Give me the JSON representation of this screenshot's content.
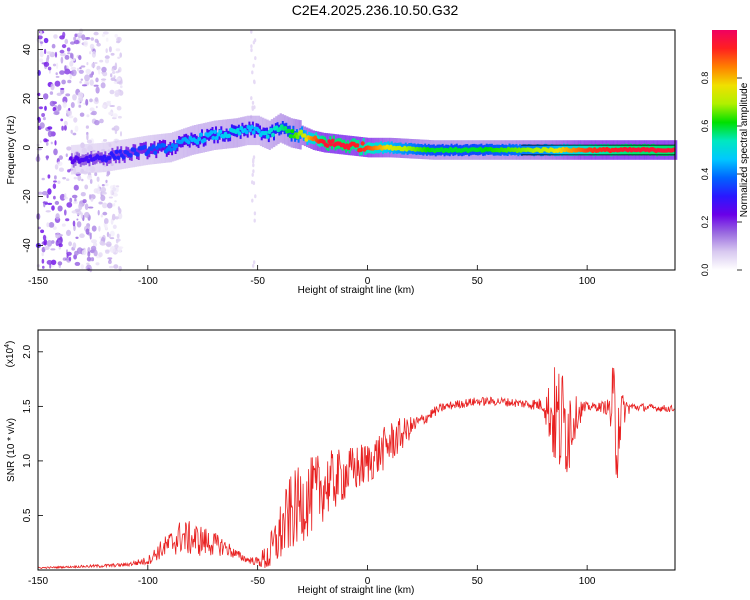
{
  "title": "C2E4.2025.236.10.50.G32",
  "chart_data": [
    {
      "type": "heatmap",
      "name": "spectrogram",
      "xlabel": "Height of straight line (km)",
      "ylabel": "Frequency (Hz)",
      "xlim": [
        -150,
        140
      ],
      "ylim": [
        -50,
        48
      ],
      "xticks": [
        -150,
        -100,
        -50,
        0,
        50,
        100
      ],
      "yticks": [
        -40,
        -20,
        0,
        20,
        40
      ],
      "colorbar": {
        "label": "Normalized spectral amplitude",
        "range": [
          0,
          1
        ],
        "ticks": [
          "0.0",
          "0.2",
          "0.4",
          "0.6",
          "0.8"
        ],
        "colors": [
          "#ffffff",
          "#d8c8f0",
          "#9a6be0",
          "#6a00e8",
          "#2a18ff",
          "#0064ff",
          "#00c8ff",
          "#00e8c0",
          "#00e000",
          "#b0f000",
          "#f0e000",
          "#ff8000",
          "#ff2020",
          "#f00060"
        ]
      },
      "ridge": {
        "x": [
          -135,
          -120,
          -100,
          -90,
          -80,
          -70,
          -60,
          -55,
          -50,
          -45,
          -40,
          -35,
          -30,
          -25,
          -20,
          -10,
          0,
          10,
          30,
          50,
          80,
          100,
          120,
          140
        ],
        "frequency": [
          -5,
          -4,
          -1,
          0,
          3,
          5,
          6,
          7,
          7,
          5,
          8,
          6,
          5,
          3,
          2,
          1,
          0,
          0,
          -1,
          -1,
          -1,
          -1,
          -1,
          -1
        ],
        "amplitude": [
          0.25,
          0.3,
          0.35,
          0.4,
          0.45,
          0.45,
          0.5,
          0.45,
          0.45,
          0.5,
          0.55,
          0.6,
          0.7,
          0.85,
          0.95,
          0.95,
          0.9,
          0.75,
          0.6,
          0.6,
          0.7,
          0.9,
          0.95,
          0.95
        ]
      },
      "scatter_region_x": [
        -150,
        -112
      ]
    },
    {
      "type": "line",
      "name": "snr",
      "xlabel": "Height of straight line (km)",
      "ylabel": "SNR (10 * v/v)",
      "yscale_label": "(x10",
      "yscale_exp": "4",
      "xlim": [
        -150,
        140
      ],
      "ylim": [
        0,
        2.2
      ],
      "xticks": [
        -150,
        -100,
        -50,
        0,
        50,
        100
      ],
      "yticks": [
        "0.5",
        "1.0",
        "1.5",
        "2.0"
      ],
      "series": [
        {
          "name": "SNR",
          "color": "#e82020",
          "x": [
            -150,
            -135,
            -120,
            -110,
            -100,
            -95,
            -90,
            -85,
            -80,
            -75,
            -70,
            -65,
            -60,
            -55,
            -50,
            -45,
            -40,
            -35,
            -30,
            -25,
            -20,
            -15,
            -10,
            -5,
            0,
            5,
            10,
            15,
            20,
            25,
            30,
            35,
            40,
            50,
            60,
            70,
            80,
            85,
            88,
            90,
            92,
            95,
            100,
            105,
            110,
            112,
            113,
            114,
            116,
            120,
            130,
            140
          ],
          "envelope": [
            0.02,
            0.03,
            0.04,
            0.05,
            0.09,
            0.18,
            0.25,
            0.32,
            0.3,
            0.28,
            0.25,
            0.22,
            0.15,
            0.1,
            0.08,
            0.14,
            0.35,
            0.55,
            0.65,
            0.72,
            0.8,
            0.85,
            0.9,
            0.95,
            1.0,
            1.08,
            1.18,
            1.25,
            1.32,
            1.38,
            1.45,
            1.5,
            1.52,
            1.55,
            1.55,
            1.53,
            1.52,
            1.45,
            1.4,
            1.38,
            1.4,
            1.45,
            1.5,
            1.5,
            1.5,
            1.45,
            1.4,
            1.45,
            1.48,
            1.5,
            1.49,
            1.48
          ],
          "spread": [
            0.01,
            0.01,
            0.02,
            0.02,
            0.05,
            0.1,
            0.15,
            0.2,
            0.2,
            0.18,
            0.14,
            0.1,
            0.06,
            0.04,
            0.05,
            0.2,
            0.35,
            0.45,
            0.45,
            0.45,
            0.4,
            0.35,
            0.3,
            0.28,
            0.25,
            0.25,
            0.25,
            0.2,
            0.12,
            0.08,
            0.06,
            0.05,
            0.05,
            0.05,
            0.05,
            0.05,
            0.08,
            0.6,
            0.7,
            0.65,
            0.6,
            0.2,
            0.05,
            0.05,
            0.1,
            0.7,
            0.8,
            0.7,
            0.2,
            0.05,
            0.04,
            0.04
          ]
        }
      ]
    }
  ]
}
